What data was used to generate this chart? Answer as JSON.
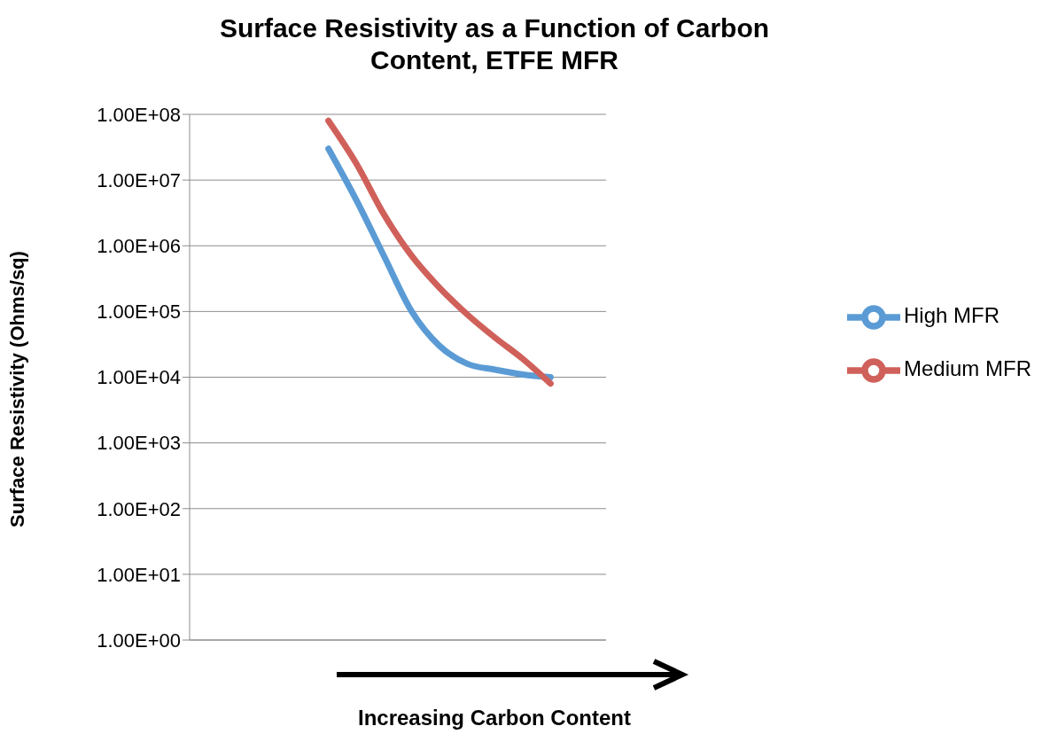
{
  "chart_data": {
    "type": "line",
    "title": "Surface Resistivity as a Function of Carbon Content, ETFE MFR",
    "xlabel": "Increasing Carbon Content",
    "ylabel": "Surface Resistivity (Ohms/sq)",
    "categories": [
      null,
      null,
      null,
      null,
      null,
      null,
      null,
      null,
      null,
      null,
      null,
      null,
      null,
      null,
      null,
      null
    ],
    "series": [
      {
        "name": "High MFR",
        "color": "#5b9bd5",
        "values": [
          null,
          null,
          null,
          null,
          null,
          30000000,
          5000000,
          700000,
          100000,
          30000,
          16000,
          13000,
          11000,
          10000,
          null,
          null
        ]
      },
      {
        "name": "Medium MFR",
        "color": "#d0605a",
        "values": [
          null,
          null,
          null,
          null,
          null,
          80000000,
          18000000,
          3000000,
          700000,
          230000,
          90000,
          40000,
          19000,
          8000,
          null,
          null
        ]
      }
    ],
    "log": "y",
    "ylim": [
      1,
      100000000
    ],
    "yticks": [
      {
        "value": 1,
        "label": "1.00E+00"
      },
      {
        "value": 10,
        "label": "1.00E+01"
      },
      {
        "value": 100,
        "label": "1.00E+02"
      },
      {
        "value": 1000,
        "label": "1.00E+03"
      },
      {
        "value": 10000,
        "label": "1.00E+04"
      },
      {
        "value": 100000,
        "label": "1.00E+05"
      },
      {
        "value": 1000000,
        "label": "1.00E+06"
      },
      {
        "value": 10000000,
        "label": "1.00E+07"
      },
      {
        "value": 100000000,
        "label": "1.00E+08"
      }
    ],
    "tick_labels": "y",
    "grid": "y",
    "legend": "right",
    "marker": "none",
    "line_style": "solid"
  }
}
